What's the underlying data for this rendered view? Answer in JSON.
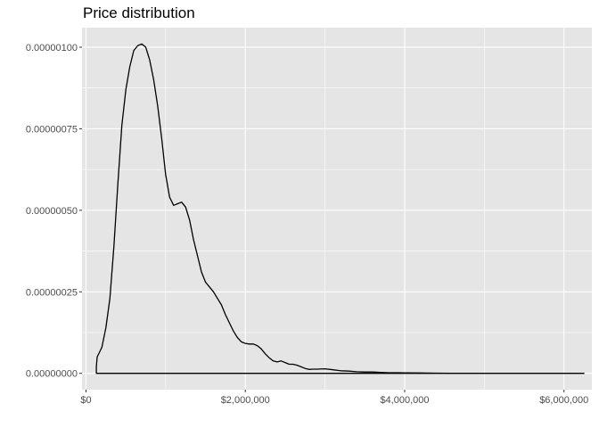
{
  "chart_data": {
    "type": "area",
    "title": "Price distribution",
    "xlabel": "",
    "ylabel": "",
    "xlim": [
      -50000,
      6350000
    ],
    "ylim": [
      -5e-08,
      1.06e-06
    ],
    "x_ticks": [
      0,
      1000000,
      2000000,
      3000000,
      4000000,
      5000000,
      6000000
    ],
    "x_tick_labels": [
      "$0",
      "",
      "$2,000,000",
      "",
      "$4,000,000",
      "",
      "$6,000,000"
    ],
    "y_ticks": [
      0,
      1.25e-07,
      2.5e-07,
      3.75e-07,
      5e-07,
      6.25e-07,
      7.5e-07,
      8.75e-07,
      1e-06
    ],
    "y_tick_labels": [
      "0.00000000",
      "",
      "0.00000025",
      "",
      "0.00000050",
      "",
      "0.00000075",
      "",
      "0.00000100"
    ],
    "grid": true,
    "colors": {
      "panel": "#e5e5e5",
      "grid": "#ffffff",
      "line": "#000000",
      "tick_text": "#4d4d4d"
    },
    "series": [
      {
        "values": [
          [
            130000,
            2e-08
          ],
          [
            140000,
            5e-08
          ],
          [
            200000,
            8e-08
          ],
          [
            250000,
            1.4e-07
          ],
          [
            300000,
            2.3e-07
          ],
          [
            350000,
            3.9e-07
          ],
          [
            400000,
            5.8e-07
          ],
          [
            450000,
            7.6e-07
          ],
          [
            500000,
            8.7e-07
          ],
          [
            550000,
            9.4e-07
          ],
          [
            600000,
            9.9e-07
          ],
          [
            650000,
            1.005e-06
          ],
          [
            700000,
            1.01e-06
          ],
          [
            750000,
            1e-06
          ],
          [
            800000,
            9.6e-07
          ],
          [
            850000,
            9e-07
          ],
          [
            900000,
            8.2e-07
          ],
          [
            950000,
            7.2e-07
          ],
          [
            1000000,
            6.1e-07
          ],
          [
            1050000,
            5.4e-07
          ],
          [
            1100000,
            5.15e-07
          ],
          [
            1150000,
            5.2e-07
          ],
          [
            1200000,
            5.25e-07
          ],
          [
            1250000,
            5.1e-07
          ],
          [
            1300000,
            4.7e-07
          ],
          [
            1350000,
            4.1e-07
          ],
          [
            1400000,
            3.6e-07
          ],
          [
            1450000,
            3.1e-07
          ],
          [
            1500000,
            2.8e-07
          ],
          [
            1550000,
            2.65e-07
          ],
          [
            1600000,
            2.5e-07
          ],
          [
            1650000,
            2.3e-07
          ],
          [
            1700000,
            2.1e-07
          ],
          [
            1750000,
            1.8e-07
          ],
          [
            1800000,
            1.55e-07
          ],
          [
            1850000,
            1.3e-07
          ],
          [
            1900000,
            1.1e-07
          ],
          [
            1950000,
            9.65e-08
          ],
          [
            2000000,
            9.2e-08
          ],
          [
            2050000,
            9e-08
          ],
          [
            2100000,
            9e-08
          ],
          [
            2150000,
            8.5e-08
          ],
          [
            2200000,
            7.5e-08
          ],
          [
            2250000,
            6e-08
          ],
          [
            2300000,
            4.8e-08
          ],
          [
            2350000,
            3.8e-08
          ],
          [
            2400000,
            3.5e-08
          ],
          [
            2450000,
            3.8e-08
          ],
          [
            2500000,
            3.3e-08
          ],
          [
            2550000,
            2.8e-08
          ],
          [
            2600000,
            2.8e-08
          ],
          [
            2650000,
            2.5e-08
          ],
          [
            2700000,
            2e-08
          ],
          [
            2750000,
            1.5e-08
          ],
          [
            2800000,
            1.2e-08
          ],
          [
            2850000,
            1.3e-08
          ],
          [
            2900000,
            1.3e-08
          ],
          [
            3000000,
            1.4e-08
          ],
          [
            3100000,
            1.1e-08
          ],
          [
            3200000,
            8e-09
          ],
          [
            3300000,
            7e-09
          ],
          [
            3400000,
            5e-09
          ],
          [
            3500000,
            4e-09
          ],
          [
            3600000,
            4e-09
          ],
          [
            3700000,
            3e-09
          ],
          [
            3800000,
            2e-09
          ],
          [
            3900000,
            2e-09
          ],
          [
            4000000,
            1.5e-09
          ],
          [
            4200000,
            1e-09
          ],
          [
            4400000,
            6e-10
          ],
          [
            4600000,
            4e-10
          ],
          [
            4800000,
            3e-10
          ],
          [
            5000000,
            2e-10
          ],
          [
            5200000,
            2e-10
          ],
          [
            5400000,
            3e-10
          ],
          [
            5500000,
            3e-10
          ],
          [
            5700000,
            2e-10
          ],
          [
            6000000,
            1e-10
          ],
          [
            6250000,
            0.0
          ]
        ]
      }
    ]
  }
}
